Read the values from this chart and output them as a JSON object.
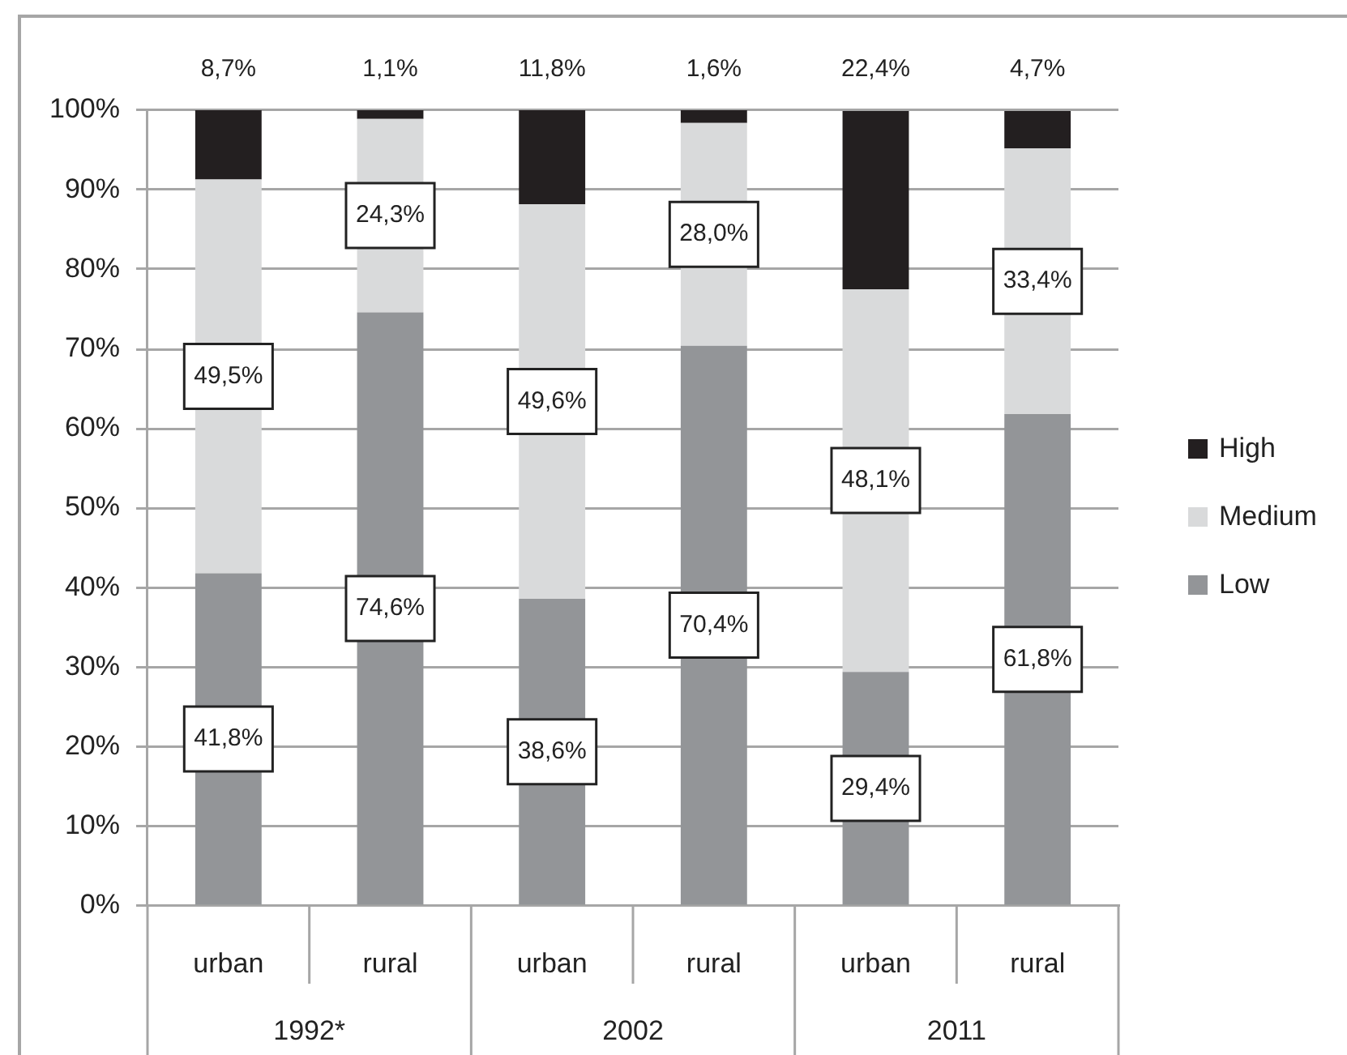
{
  "chart_data": {
    "type": "bar",
    "stacked": true,
    "categories": [
      "urban",
      "rural",
      "urban",
      "rural",
      "urban",
      "rural"
    ],
    "series": [
      {
        "name": "Low",
        "color": "#939598",
        "values": [
          41.8,
          74.6,
          38.6,
          70.4,
          29.4,
          61.8
        ],
        "value_labels": [
          "41,8%",
          "74,6%",
          "38,6%",
          "70,4%",
          "29,4%",
          "61,8%"
        ]
      },
      {
        "name": "Medium",
        "color": "#d9dadb",
        "values": [
          49.5,
          24.3,
          49.6,
          28.0,
          48.1,
          33.4
        ],
        "value_labels": [
          "49,5%",
          "24,3%",
          "49,6%",
          "28,0%",
          "48,1%",
          "33,4%"
        ]
      },
      {
        "name": "High",
        "color": "#231f20",
        "values": [
          8.7,
          1.1,
          11.8,
          1.6,
          22.4,
          4.7
        ],
        "value_labels": [
          "8,7%",
          "1,1%",
          "11,8%",
          "1,6%",
          "22,4%",
          "4,7%"
        ]
      }
    ],
    "ylim": [
      0,
      100
    ],
    "yticks": [
      {
        "value": 0,
        "label": "0%"
      },
      {
        "value": 10,
        "label": "10%"
      },
      {
        "value": 20,
        "label": "20%"
      },
      {
        "value": 30,
        "label": "30%"
      },
      {
        "value": 40,
        "label": "40%"
      },
      {
        "value": 50,
        "label": "50%"
      },
      {
        "value": 60,
        "label": "60%"
      },
      {
        "value": 70,
        "label": "70%"
      },
      {
        "value": 80,
        "label": "80%"
      },
      {
        "value": 90,
        "label": "90%"
      },
      {
        "value": 100,
        "label": "100%"
      }
    ],
    "grid": "y",
    "legend": "right",
    "annotations": [
      "1992*",
      "2002",
      "2011"
    ]
  }
}
